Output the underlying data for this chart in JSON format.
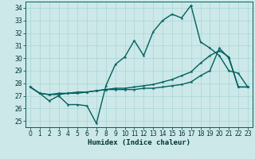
{
  "xlabel": "Humidex (Indice chaleur)",
  "ylabel": "",
  "xlim": [
    -0.5,
    23.5
  ],
  "ylim": [
    24.5,
    34.5
  ],
  "xticks": [
    0,
    1,
    2,
    3,
    4,
    5,
    6,
    7,
    8,
    9,
    10,
    11,
    12,
    13,
    14,
    15,
    16,
    17,
    18,
    19,
    20,
    21,
    22,
    23
  ],
  "yticks": [
    25,
    26,
    27,
    28,
    29,
    30,
    31,
    32,
    33,
    34
  ],
  "bg_color": "#cce8e8",
  "grid_color": "#aad4d4",
  "line_color": "#006060",
  "curve1_y": [
    27.7,
    27.2,
    26.6,
    27.0,
    26.3,
    26.3,
    26.2,
    24.8,
    27.8,
    29.5,
    30.1,
    31.4,
    30.2,
    32.1,
    33.0,
    33.5,
    33.2,
    34.2,
    31.3,
    30.8,
    30.2,
    29.0,
    28.8,
    27.7
  ],
  "curve2_y": [
    27.7,
    27.2,
    27.1,
    27.2,
    27.2,
    27.3,
    27.3,
    27.4,
    27.5,
    27.6,
    27.6,
    27.7,
    27.8,
    27.9,
    28.1,
    28.3,
    28.6,
    28.9,
    29.6,
    30.2,
    30.6,
    30.1,
    27.7,
    27.7
  ],
  "curve3_y": [
    27.7,
    27.2,
    27.1,
    27.1,
    27.2,
    27.2,
    27.3,
    27.4,
    27.5,
    27.5,
    27.5,
    27.5,
    27.6,
    27.6,
    27.7,
    27.8,
    27.9,
    28.1,
    28.6,
    29.0,
    30.8,
    30.0,
    27.7,
    27.7
  ],
  "marker": "*",
  "marker_size": 3,
  "linewidth": 1.0,
  "tick_fontsize": 5.5,
  "xlabel_fontsize": 6.5
}
